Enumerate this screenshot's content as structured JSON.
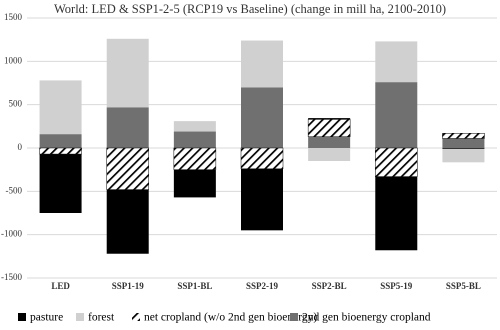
{
  "chart_data": {
    "type": "stacked_bar",
    "title": "World: LED & SSP1-2-5 (RCP19 vs Baseline) (change in mill ha, 2100-2010)",
    "categories": [
      "LED",
      "SSP1-19",
      "SSP1-BL",
      "SSP2-19",
      "SSP2-BL",
      "SSP5-19",
      "SSP5-BL"
    ],
    "series": [
      {
        "name": "pasture",
        "color": "#000000",
        "values": [
          -680,
          -740,
          -320,
          -710,
          15,
          -850,
          -10
        ]
      },
      {
        "name": "forest",
        "color": "#d0d0d0",
        "values": [
          620,
          790,
          120,
          540,
          -150,
          470,
          -155
        ]
      },
      {
        "name": "net cropland (w/o 2nd gen bioenergy)",
        "color": "#000000",
        "hatch": true,
        "values": [
          -70,
          -480,
          -250,
          -240,
          200,
          -330,
          60
        ]
      },
      {
        "name": "2nd gen bioenergy cropland",
        "color": "#707070",
        "values": [
          160,
          470,
          190,
          700,
          130,
          760,
          110
        ]
      }
    ],
    "ylim": [
      -1500,
      1500
    ],
    "yticks": [
      -1500,
      -1000,
      -500,
      0,
      500,
      1000,
      1500
    ],
    "grid": true
  }
}
